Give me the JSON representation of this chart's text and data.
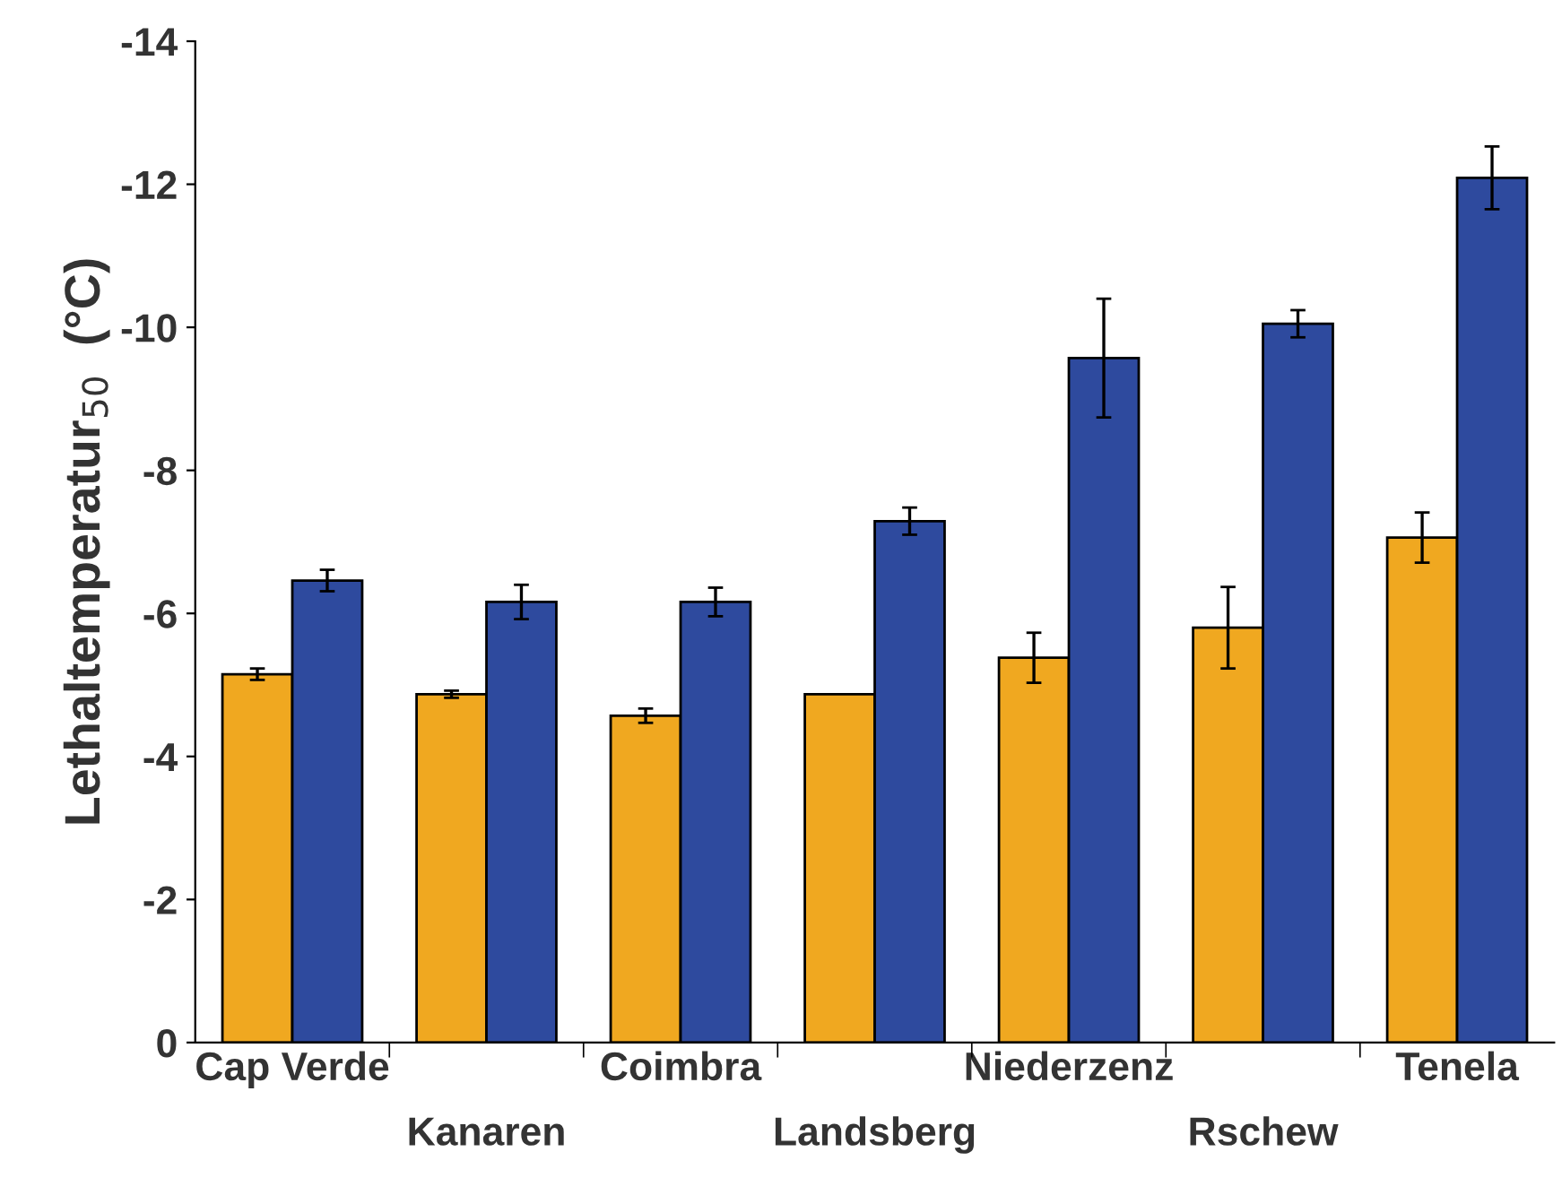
{
  "chart_data": {
    "type": "bar",
    "ylabel": "Lethaltemperatur$_{50}$  (°C)",
    "categories": [
      "Cap Verde",
      "Kanaren",
      "Coimbra",
      "Landsberg",
      "Niederzenz",
      "Rschew",
      "Tenela"
    ],
    "series": [
      {
        "color": "#f0a820",
        "values": [
          -5.15,
          -4.87,
          -4.57,
          -4.87,
          -5.38,
          -5.8,
          -7.06
        ],
        "errors": [
          0.08,
          0.05,
          0.1,
          null,
          0.35,
          0.57,
          0.35
        ]
      },
      {
        "color": "#2e4a9e",
        "values": [
          -6.46,
          -6.16,
          -6.16,
          -7.29,
          -9.57,
          -10.05,
          -12.09
        ],
        "errors": [
          0.15,
          0.24,
          0.2,
          0.19,
          0.83,
          0.19,
          0.44
        ]
      }
    ],
    "ylim": [
      0,
      -14
    ],
    "yticks": [
      0,
      -2,
      -4,
      -6,
      -8,
      -10,
      -12,
      -14
    ],
    "grid": false
  }
}
